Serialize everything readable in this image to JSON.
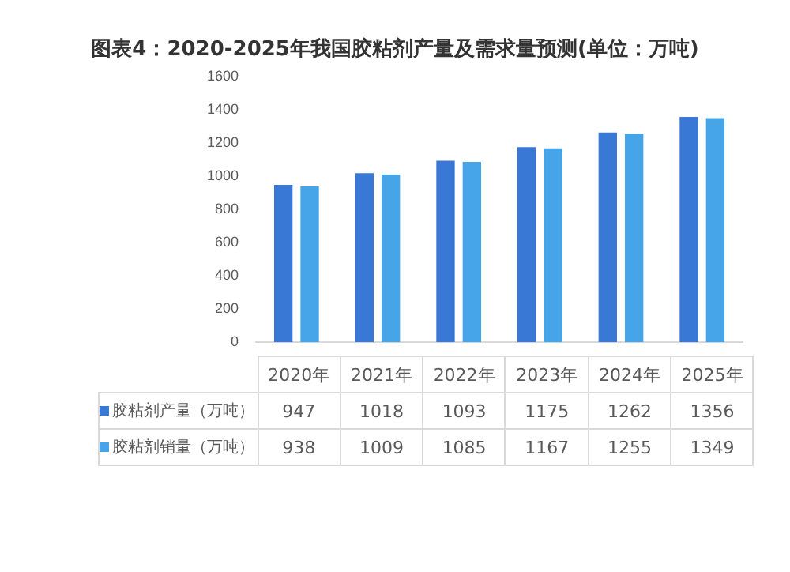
{
  "chart_data": {
    "type": "bar",
    "title": "图表4：2020-2025年我国胶粘剂产量及需求量预测(单位：万吨)",
    "categories": [
      "2020年",
      "2021年",
      "2022年",
      "2023年",
      "2024年",
      "2025年"
    ],
    "series": [
      {
        "name": "胶粘剂产量（万吨）",
        "color": "#3a78d6",
        "values": [
          947,
          1018,
          1093,
          1175,
          1262,
          1356
        ]
      },
      {
        "name": "胶粘剂销量（万吨）",
        "color": "#45a5e8",
        "values": [
          938,
          1009,
          1085,
          1167,
          1255,
          1349
        ]
      }
    ],
    "ylim": [
      0,
      1600
    ],
    "yticks": [
      0,
      200,
      400,
      600,
      800,
      1000,
      1200,
      1400,
      1600
    ],
    "grid": false,
    "legend": "bottom",
    "data_labels": true,
    "tick_labels": "y"
  }
}
